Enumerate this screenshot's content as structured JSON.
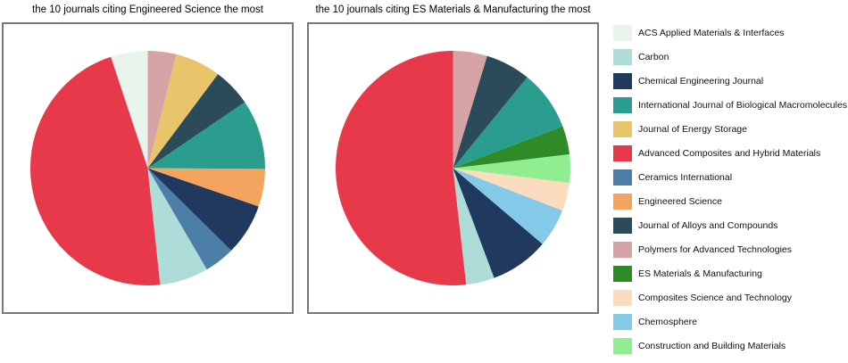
{
  "figure": {
    "background": "#ffffff",
    "panel_border_color": "#787878"
  },
  "legend": {
    "items": [
      {
        "label": "ACS Applied Materials & Interfaces",
        "color": "#e9f5ec"
      },
      {
        "label": "Carbon",
        "color": "#aedcd9"
      },
      {
        "label": "Chemical Engineering Journal",
        "color": "#21395e"
      },
      {
        "label": "International Journal of Biological Macromolecules",
        "color": "#2a9d8f"
      },
      {
        "label": "Journal of Energy Storage",
        "color": "#e9c46a"
      },
      {
        "label": "Advanced Composites and Hybrid Materials",
        "color": "#e8394a"
      },
      {
        "label": "Ceramics International",
        "color": "#4d7ea8"
      },
      {
        "label": "Engineered Science",
        "color": "#f4a45f"
      },
      {
        "label": "Journal of Alloys and Compounds",
        "color": "#2b4a5a"
      },
      {
        "label": "Polymers for Advanced Technologies",
        "color": "#d5a3a6"
      },
      {
        "label": "ES Materials & Manufacturing",
        "color": "#2e8b28"
      },
      {
        "label": "Composites Science and Technology",
        "color": "#fcdcbe"
      },
      {
        "label": "Chemosphere",
        "color": "#85c9e8"
      },
      {
        "label": "Construction and Building Materials",
        "color": "#90ee90"
      }
    ]
  },
  "chart_data": [
    {
      "type": "pie",
      "title": "the 10 journals citing Engineered Science the most",
      "start_angle_deg": 90,
      "direction": "counterclockwise",
      "legend_position": "right-of-figure",
      "slices": [
        {
          "label": "ACS Applied Materials & Interfaces",
          "pct": 5.1,
          "color": "#e9f5ec"
        },
        {
          "label": "Advanced Composites and Hybrid Materials",
          "pct": 46.6,
          "color": "#e8394a"
        },
        {
          "label": "Carbon",
          "pct": 6.7,
          "color": "#aedcd9"
        },
        {
          "label": "Ceramics International",
          "pct": 4.2,
          "color": "#4d7ea8"
        },
        {
          "label": "Chemical Engineering Journal",
          "pct": 7.1,
          "color": "#21395e"
        },
        {
          "label": "Engineered Science",
          "pct": 5.2,
          "color": "#f4a45f"
        },
        {
          "label": "International Journal of Biological Macromolecules",
          "pct": 9.6,
          "color": "#2a9d8f"
        },
        {
          "label": "Journal of Alloys and Compounds",
          "pct": 5.3,
          "color": "#2b4a5a"
        },
        {
          "label": "Journal of Energy Storage",
          "pct": 6.3,
          "color": "#e9c46a"
        },
        {
          "label": "Polymers for Advanced Technologies",
          "pct": 3.9,
          "color": "#d5a3a6"
        }
      ]
    },
    {
      "type": "pie",
      "title": "the 10 journals citing ES Materials & Manufacturing the most",
      "start_angle_deg": 90,
      "direction": "counterclockwise",
      "legend_position": "right-of-figure",
      "slices": [
        {
          "label": "Advanced Composites and Hybrid Materials",
          "pct": 51.8,
          "color": "#e8394a"
        },
        {
          "label": "Carbon",
          "pct": 3.9,
          "color": "#aedcd9"
        },
        {
          "label": "Chemical Engineering Journal",
          "pct": 8.1,
          "color": "#21395e"
        },
        {
          "label": "Chemosphere",
          "pct": 5.3,
          "color": "#85c9e8"
        },
        {
          "label": "Composites Science and Technology",
          "pct": 3.9,
          "color": "#fcdcbe"
        },
        {
          "label": "Construction and Building Materials",
          "pct": 3.9,
          "color": "#90ee90"
        },
        {
          "label": "ES Materials & Manufacturing",
          "pct": 3.9,
          "color": "#2e8b28"
        },
        {
          "label": "International Journal of Biological Macromolecules",
          "pct": 8.3,
          "color": "#2a9d8f"
        },
        {
          "label": "Journal of Alloys and Compounds",
          "pct": 6.2,
          "color": "#2b4a5a"
        },
        {
          "label": "Polymers for Advanced Technologies",
          "pct": 4.7,
          "color": "#d5a3a6"
        }
      ]
    }
  ]
}
